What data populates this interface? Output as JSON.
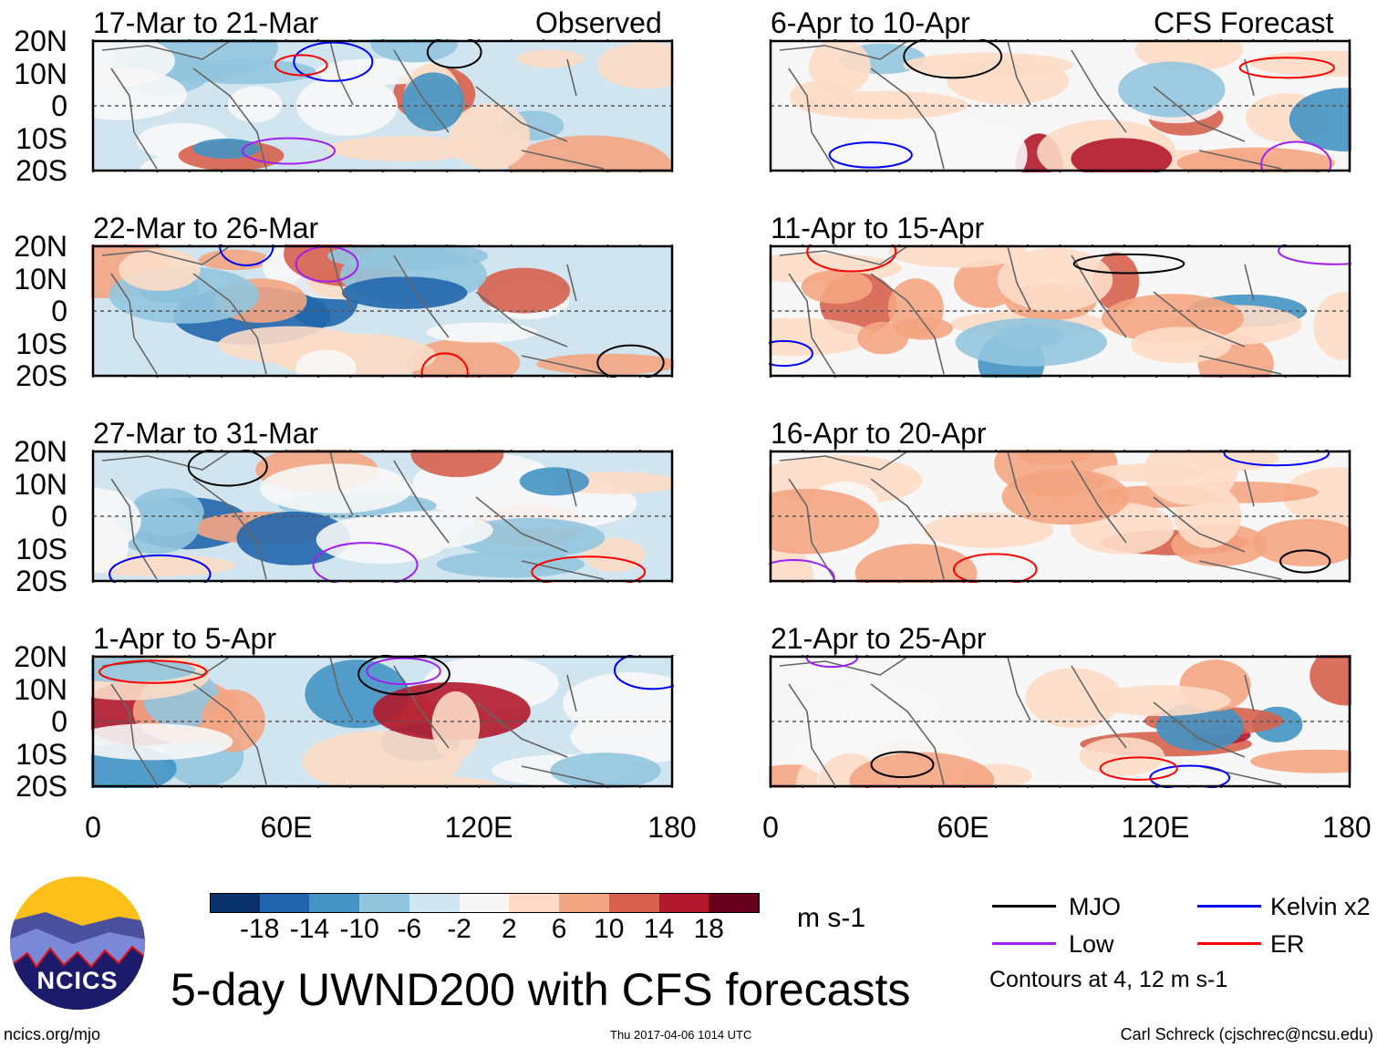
{
  "panels": {
    "observed_label": "Observed",
    "forecast_label": "CFS Forecast",
    "left": [
      "17-Mar to 21-Mar",
      "22-Mar to 26-Mar",
      "27-Mar to 31-Mar",
      "1-Apr to 5-Apr"
    ],
    "right": [
      "6-Apr to 10-Apr",
      "11-Apr to 15-Apr",
      "16-Apr to 20-Apr",
      "21-Apr to 25-Apr"
    ]
  },
  "axes": {
    "lat_labels": [
      "20N",
      "10N",
      "0",
      "10S",
      "20S"
    ],
    "lon_labels": [
      "0",
      "60E",
      "120E",
      "180"
    ]
  },
  "colorbar": {
    "colors": [
      "#08306b",
      "#2166ac",
      "#4393c3",
      "#92c5de",
      "#d1e5f0",
      "#f7f7f7",
      "#fddbc7",
      "#f4a582",
      "#d6604d",
      "#b2182b",
      "#67001f"
    ],
    "labels": [
      "-18",
      "-14",
      "-10",
      "-6",
      "-2",
      "2",
      "6",
      "10",
      "14",
      "18"
    ],
    "units": "m s-1"
  },
  "legend": {
    "items": [
      {
        "label": "MJO",
        "color": "#000000"
      },
      {
        "label": "Kelvin x2",
        "color": "#0000ff"
      },
      {
        "label": "Low",
        "color": "#a020f0"
      },
      {
        "label": "ER",
        "color": "#ff0000"
      }
    ],
    "note": "Contours at 4, 12 m s-1"
  },
  "title": "5-day UWND200 with CFS forecasts",
  "logo_text": "NCICS",
  "footer": {
    "url": "ncics.org/mjo",
    "timestamp": "Thu 2017-04-06 1014 UTC",
    "author": "Carl Schreck (cjschrec@ncsu.edu)"
  }
}
